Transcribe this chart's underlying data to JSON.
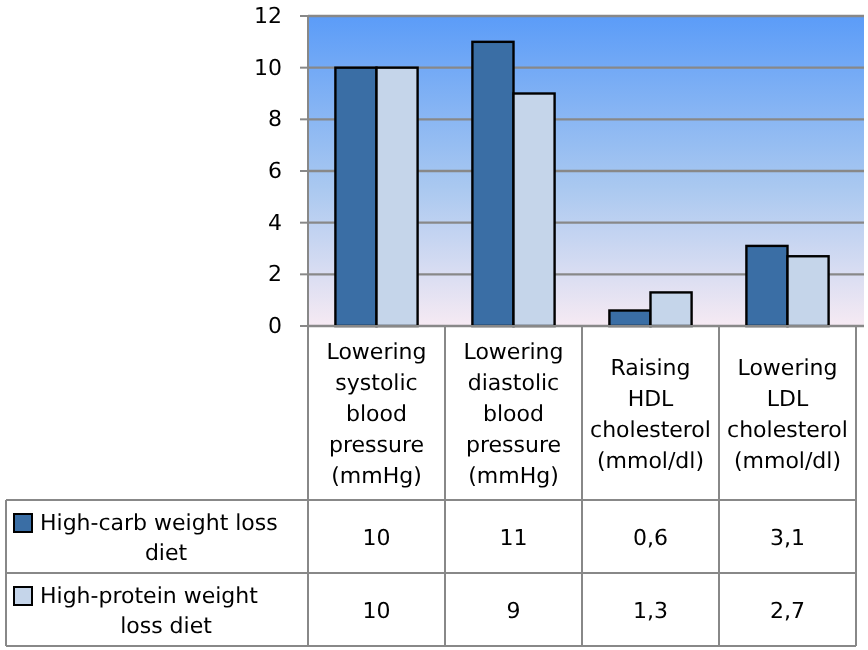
{
  "chart_data": {
    "type": "bar",
    "categories": [
      "Lowering systolic blood pressure (mmHg)",
      "Lowering diastolic blood pressure (mmHg)",
      "Raising HDL cholesterol (mmol/dl)",
      "Lowering LDL cholesterol (mmol/dl)"
    ],
    "series": [
      {
        "name": "High-carb weight loss diet",
        "color": "#3a6ea5",
        "values": [
          10,
          11,
          0.6,
          3.1
        ],
        "value_labels": [
          "10",
          "11",
          "0,6",
          "3,1"
        ]
      },
      {
        "name": "High-protein weight loss diet",
        "color": "#c5d5ea",
        "values": [
          10,
          9,
          1.3,
          2.7
        ],
        "value_labels": [
          "10",
          "9",
          "1,3",
          "2,7"
        ]
      }
    ],
    "ylim": [
      0,
      12
    ],
    "yticks": [
      0,
      2,
      4,
      6,
      8,
      10,
      12
    ],
    "grid": "y",
    "legend": "bottom left"
  }
}
